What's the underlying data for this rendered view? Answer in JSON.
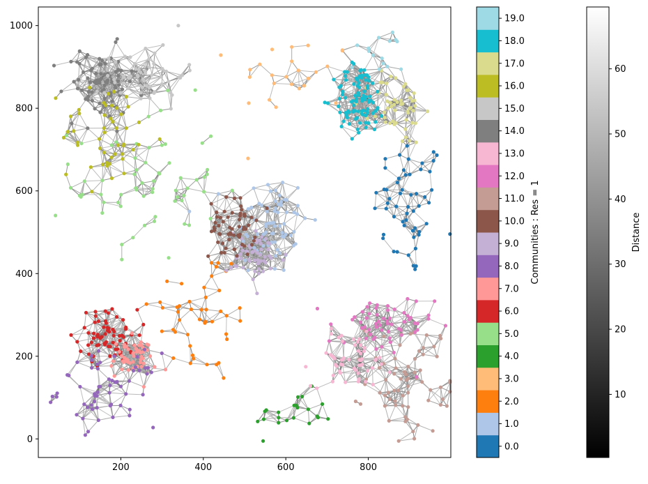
{
  "chart_data": {
    "type": "scatter",
    "subtype": "network graph",
    "title": "",
    "xlabel": "",
    "ylabel": "",
    "xlim": [
      0,
      1000
    ],
    "ylim": [
      -45,
      1045
    ],
    "xticks": [
      200,
      400,
      600,
      800
    ],
    "xtick_labels": [
      "200",
      "400",
      "600",
      "800"
    ],
    "yticks": [
      0,
      200,
      400,
      600,
      800,
      1000
    ],
    "ytick_labels": [
      "0",
      "200",
      "400",
      "600",
      "800",
      "1000"
    ],
    "grid": false,
    "node_count_estimate": 1000,
    "communities": [
      {
        "id": 0,
        "color": "#1f77b4",
        "cx": 900,
        "cy": 560,
        "sx": 55,
        "sy": 110,
        "n": 55
      },
      {
        "id": 1,
        "color": "#aec7e8",
        "cx": 560,
        "cy": 520,
        "sx": 60,
        "sy": 80,
        "n": 75
      },
      {
        "id": 2,
        "color": "#ff7f0e",
        "cx": 400,
        "cy": 300,
        "sx": 80,
        "sy": 110,
        "n": 45
      },
      {
        "id": 3,
        "color": "#ffbb78",
        "cx": 620,
        "cy": 880,
        "sx": 90,
        "sy": 60,
        "n": 25
      },
      {
        "id": 4,
        "color": "#2ca02c",
        "cx": 620,
        "cy": 60,
        "sx": 60,
        "sy": 35,
        "n": 22
      },
      {
        "id": 5,
        "color": "#98df8a",
        "cx": 260,
        "cy": 620,
        "sx": 110,
        "sy": 120,
        "n": 65
      },
      {
        "id": 6,
        "color": "#d62728",
        "cx": 170,
        "cy": 250,
        "sx": 45,
        "sy": 40,
        "n": 70
      },
      {
        "id": 7,
        "color": "#ff9896",
        "cx": 230,
        "cy": 195,
        "sx": 35,
        "sy": 30,
        "n": 55
      },
      {
        "id": 8,
        "color": "#9467bd",
        "cx": 170,
        "cy": 120,
        "sx": 75,
        "sy": 55,
        "n": 60
      },
      {
        "id": 9,
        "color": "#c5b0d5",
        "cx": 530,
        "cy": 440,
        "sx": 45,
        "sy": 40,
        "n": 55
      },
      {
        "id": 10,
        "color": "#8c564b",
        "cx": 470,
        "cy": 510,
        "sx": 35,
        "sy": 45,
        "n": 60
      },
      {
        "id": 11,
        "color": "#c49c94",
        "cx": 900,
        "cy": 150,
        "sx": 65,
        "sy": 85,
        "n": 70
      },
      {
        "id": 12,
        "color": "#e377c2",
        "cx": 830,
        "cy": 270,
        "sx": 80,
        "sy": 50,
        "n": 60
      },
      {
        "id": 13,
        "color": "#f7b6d2",
        "cx": 760,
        "cy": 190,
        "sx": 60,
        "sy": 40,
        "n": 55
      },
      {
        "id": 14,
        "color": "#7f7f7f",
        "cx": 150,
        "cy": 860,
        "sx": 55,
        "sy": 55,
        "n": 85
      },
      {
        "id": 15,
        "color": "#c7c7c7",
        "cx": 260,
        "cy": 880,
        "sx": 60,
        "sy": 50,
        "n": 55
      },
      {
        "id": 16,
        "color": "#bcbd22",
        "cx": 170,
        "cy": 740,
        "sx": 70,
        "sy": 80,
        "n": 50
      },
      {
        "id": 17,
        "color": "#dbdb8d",
        "cx": 870,
        "cy": 800,
        "sx": 40,
        "sy": 55,
        "n": 55
      },
      {
        "id": 18,
        "color": "#17becf",
        "cx": 780,
        "cy": 820,
        "sx": 40,
        "sy": 55,
        "n": 95
      },
      {
        "id": 19,
        "color": "#9edae5",
        "cx": 830,
        "cy": 930,
        "sx": 50,
        "sy": 40,
        "n": 15
      }
    ],
    "colorbar_communities": {
      "label": "Communities : Res = 1",
      "tick_labels": [
        "0.0",
        "1.0",
        "2.0",
        "3.0",
        "4.0",
        "5.0",
        "6.0",
        "7.0",
        "8.0",
        "9.0",
        "10.0",
        "11.0",
        "12.0",
        "13.0",
        "14.0",
        "15.0",
        "16.0",
        "17.0",
        "18.0",
        "19.0"
      ],
      "colors": [
        "#1f77b4",
        "#aec7e8",
        "#ff7f0e",
        "#ffbb78",
        "#2ca02c",
        "#98df8a",
        "#d62728",
        "#ff9896",
        "#9467bd",
        "#c5b0d5",
        "#8c564b",
        "#c49c94",
        "#e377c2",
        "#f7b6d2",
        "#7f7f7f",
        "#c7c7c7",
        "#bcbd22",
        "#dbdb8d",
        "#17becf",
        "#9edae5"
      ]
    },
    "colorbar_distance": {
      "label": "Distance",
      "min": 0.3,
      "max": 69.5,
      "ticks": [
        10,
        20,
        30,
        40,
        50,
        60
      ],
      "tick_labels": [
        "10",
        "20",
        "30",
        "40",
        "50",
        "60"
      ],
      "colormap": "gray (black to white)"
    }
  }
}
